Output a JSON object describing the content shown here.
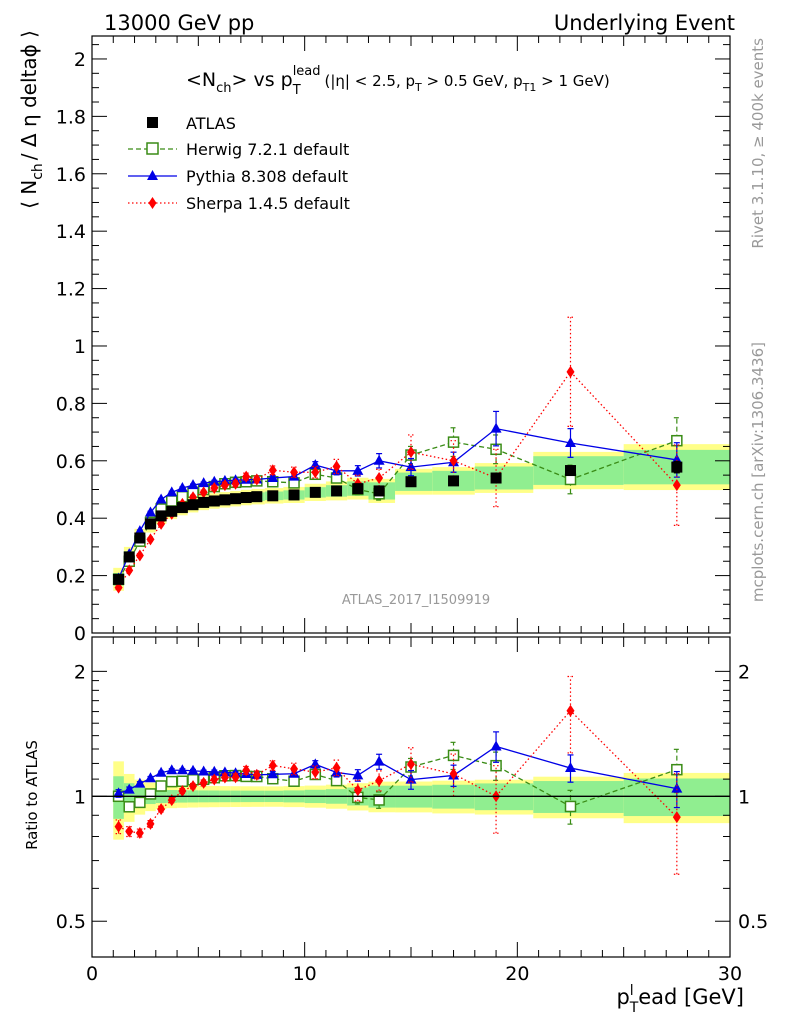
{
  "header": {
    "left": "13000 GeV pp",
    "right": "Underlying Event"
  },
  "plot_title": {
    "main_a": "<N",
    "main_a_sub": "ch",
    "main_b": "> vs p",
    "main_b_sub": "T",
    "main_b_sup": "lead",
    "cuts_a": "(|η| < 2.5, p",
    "cuts_a_sub": "T",
    "cuts_b": " > 0.5 GeV, p",
    "cuts_b_sub": "T1",
    "cuts_c": " > 1 GeV)"
  },
  "side_labels": {
    "rivet": "Rivet 3.1.10, ≥ 400k events",
    "mcplots": "mcplots.cern.ch [arXiv:1306.3436]"
  },
  "analysis_tag": "ATLAS_2017_I1509919",
  "axes": {
    "ylabel_main": "⟨ N",
    "ylabel_main_sub": "ch",
    "ylabel_main_rest": "/ Δ η deltaϕ ⟩",
    "ylabel_ratio": "Ratio to ATLAS",
    "xlabel_a": "p",
    "xlabel_a_sup": "l",
    "xlabel_a_sub": "T",
    "xlabel_b": "ead [GeV]"
  },
  "legend": [
    {
      "label": "ATLAS"
    },
    {
      "label": "Herwig 7.2.1 default"
    },
    {
      "label": "Pythia 8.308 default"
    },
    {
      "label": "Sherpa 1.4.5 default"
    }
  ],
  "colors": {
    "atlas": "#000000",
    "herwig": "#3a8c16",
    "pythia": "#0000e6",
    "sherpa": "#ff0000",
    "band_inner": "#90ee90",
    "band_outer": "#ffff88"
  },
  "chart_data": {
    "type": "scatter",
    "x_range": [
      0,
      30
    ],
    "main_ylim": [
      0,
      2.08
    ],
    "main_yticks": [
      "0",
      "0.2",
      "0.4",
      "0.6",
      "0.8",
      "1",
      "1.2",
      "1.4",
      "1.6",
      "1.8",
      "2"
    ],
    "ratio_ylim": [
      0.41,
      2.42
    ],
    "ratio_ytick_labels": [
      "0.5",
      "1",
      "2"
    ],
    "x_ticks": [
      "0",
      "10",
      "20",
      "30"
    ],
    "x": [
      1.25,
      1.75,
      2.25,
      2.75,
      3.25,
      3.75,
      4.25,
      4.75,
      5.25,
      5.75,
      6.25,
      6.75,
      7.25,
      7.75,
      8.5,
      9.5,
      10.5,
      11.5,
      12.5,
      13.5,
      15,
      17,
      19,
      22.5,
      27.5
    ],
    "series": [
      {
        "name": "ATLAS",
        "values": [
          0.187,
          0.265,
          0.331,
          0.38,
          0.408,
          0.424,
          0.437,
          0.447,
          0.455,
          0.46,
          0.464,
          0.468,
          0.472,
          0.475,
          0.478,
          0.481,
          0.49,
          0.495,
          0.503,
          0.495,
          0.527,
          0.53,
          0.54,
          0.566,
          0.578
        ],
        "errors": [
          0.003,
          0.003,
          0.003,
          0.003,
          0.003,
          0.003,
          0.003,
          0.003,
          0.003,
          0.003,
          0.003,
          0.003,
          0.003,
          0.003,
          0.003,
          0.004,
          0.005,
          0.006,
          0.007,
          0.008,
          0.009,
          0.01,
          0.012,
          0.015,
          0.02
        ],
        "band_inner": [
          0.022,
          0.02,
          0.018,
          0.016,
          0.015,
          0.015,
          0.015,
          0.015,
          0.015,
          0.015,
          0.015,
          0.015,
          0.015,
          0.015,
          0.015,
          0.016,
          0.018,
          0.02,
          0.025,
          0.03,
          0.032,
          0.035,
          0.04,
          0.05,
          0.06
        ],
        "band_outer": [
          0.04,
          0.035,
          0.032,
          0.03,
          0.028,
          0.027,
          0.027,
          0.027,
          0.027,
          0.027,
          0.027,
          0.027,
          0.027,
          0.027,
          0.027,
          0.028,
          0.03,
          0.033,
          0.038,
          0.042,
          0.045,
          0.048,
          0.052,
          0.065,
          0.08
        ]
      },
      {
        "name": "Herwig 7.2.1 default",
        "values": [
          0.187,
          0.25,
          0.32,
          0.385,
          0.432,
          0.46,
          0.475,
          0.49,
          0.5,
          0.51,
          0.52,
          0.525,
          0.527,
          0.53,
          0.527,
          0.523,
          0.553,
          0.54,
          0.5,
          0.485,
          0.62,
          0.665,
          0.64,
          0.535,
          0.67
        ],
        "errors": [
          0.005,
          0.004,
          0.004,
          0.004,
          0.004,
          0.004,
          0.004,
          0.004,
          0.005,
          0.005,
          0.005,
          0.006,
          0.007,
          0.008,
          0.009,
          0.01,
          0.012,
          0.014,
          0.018,
          0.022,
          0.03,
          0.05,
          0.05,
          0.05,
          0.08
        ]
      },
      {
        "name": "Pythia 8.308 default",
        "values": [
          0.19,
          0.275,
          0.355,
          0.42,
          0.465,
          0.49,
          0.505,
          0.515,
          0.522,
          0.527,
          0.53,
          0.532,
          0.534,
          0.535,
          0.54,
          0.545,
          0.585,
          0.565,
          0.565,
          0.6,
          0.578,
          0.595,
          0.712,
          0.662,
          0.603
        ],
        "errors": [
          0.004,
          0.004,
          0.004,
          0.004,
          0.004,
          0.004,
          0.004,
          0.004,
          0.004,
          0.005,
          0.005,
          0.005,
          0.006,
          0.007,
          0.008,
          0.009,
          0.012,
          0.014,
          0.018,
          0.025,
          0.03,
          0.035,
          0.06,
          0.05,
          0.06
        ]
      },
      {
        "name": "Sherpa 1.4.5 default",
        "values": [
          0.158,
          0.218,
          0.27,
          0.326,
          0.38,
          0.415,
          0.45,
          0.473,
          0.49,
          0.505,
          0.515,
          0.52,
          0.545,
          0.535,
          0.567,
          0.56,
          0.56,
          0.58,
          0.52,
          0.54,
          0.63,
          0.6,
          0.54,
          0.91,
          0.515
        ],
        "errors": [
          0.006,
          0.006,
          0.006,
          0.006,
          0.006,
          0.006,
          0.006,
          0.007,
          0.008,
          0.009,
          0.01,
          0.01,
          0.012,
          0.012,
          0.015,
          0.018,
          0.02,
          0.025,
          0.03,
          0.03,
          0.06,
          0.07,
          0.1,
          0.19,
          0.14
        ]
      }
    ]
  }
}
